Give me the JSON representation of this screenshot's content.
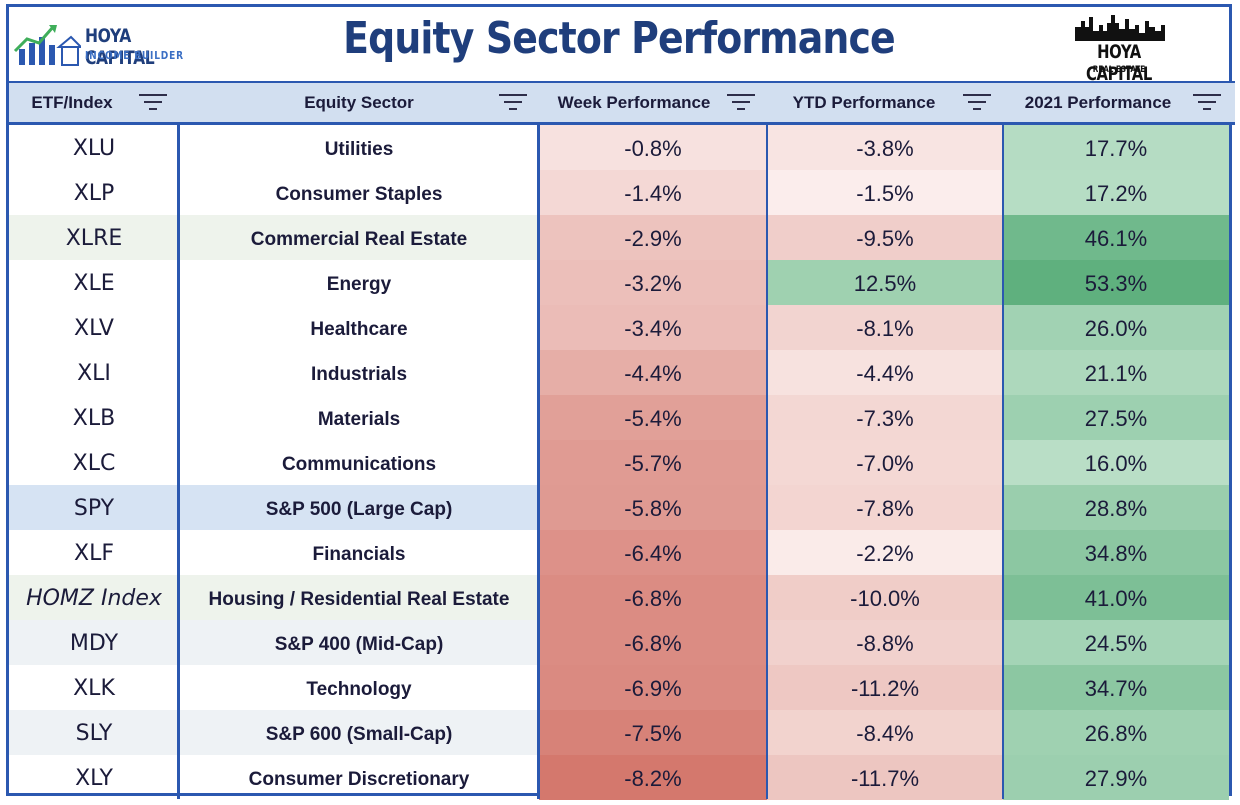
{
  "title": "Equity Sector Performance",
  "logo_left": {
    "brand": "HOYA CAPITAL",
    "sub": "INCOME BUILDER"
  },
  "logo_right": {
    "brand": "HOYA CAPITAL",
    "sub": "REAL ESTATE"
  },
  "headers": {
    "etf": "ETF/Index",
    "sector": "Equity Sector",
    "week": "Week Performance",
    "ytd": "YTD Performance",
    "y2021": "2021 Performance"
  },
  "rows": [
    {
      "etf": "XLU",
      "sector": "Utilities",
      "week": "-0.8%",
      "ytd": "-3.8%",
      "y2021": "17.7%"
    },
    {
      "etf": "XLP",
      "sector": "Consumer Staples",
      "week": "-1.4%",
      "ytd": "-1.5%",
      "y2021": "17.2%"
    },
    {
      "etf": "XLRE",
      "sector": "Commercial Real Estate",
      "week": "-2.9%",
      "ytd": "-9.5%",
      "y2021": "46.1%"
    },
    {
      "etf": "XLE",
      "sector": "Energy",
      "week": "-3.2%",
      "ytd": "12.5%",
      "y2021": "53.3%"
    },
    {
      "etf": "XLV",
      "sector": "Healthcare",
      "week": "-3.4%",
      "ytd": "-8.1%",
      "y2021": "26.0%"
    },
    {
      "etf": "XLI",
      "sector": "Industrials",
      "week": "-4.4%",
      "ytd": "-4.4%",
      "y2021": "21.1%"
    },
    {
      "etf": "XLB",
      "sector": "Materials",
      "week": "-5.4%",
      "ytd": "-7.3%",
      "y2021": "27.5%"
    },
    {
      "etf": "XLC",
      "sector": "Communications",
      "week": "-5.7%",
      "ytd": "-7.0%",
      "y2021": "16.0%"
    },
    {
      "etf": "SPY",
      "sector": "S&P 500 (Large Cap)",
      "week": "-5.8%",
      "ytd": "-7.8%",
      "y2021": "28.8%"
    },
    {
      "etf": "XLF",
      "sector": "Financials",
      "week": "-6.4%",
      "ytd": "-2.2%",
      "y2021": "34.8%"
    },
    {
      "etf": "HOMZ Index",
      "sector": "Housing / Residential Real Estate",
      "week": "-6.8%",
      "ytd": "-10.0%",
      "y2021": "41.0%"
    },
    {
      "etf": "MDY",
      "sector": "S&P 400 (Mid-Cap)",
      "week": "-6.8%",
      "ytd": "-8.8%",
      "y2021": "24.5%"
    },
    {
      "etf": "XLK",
      "sector": "Technology",
      "week": "-6.9%",
      "ytd": "-11.2%",
      "y2021": "34.7%"
    },
    {
      "etf": "SLY",
      "sector": "S&P 600 (Small-Cap)",
      "week": "-7.5%",
      "ytd": "-8.4%",
      "y2021": "26.8%"
    },
    {
      "etf": "XLY",
      "sector": "Consumer Discretionary",
      "week": "-8.2%",
      "ytd": "-11.7%",
      "y2021": "27.9%"
    }
  ],
  "row_highlights": {
    "XLRE": "#eef3ec",
    "SPY": "#d6e3f3",
    "HOMZ Index": "#eef3ec",
    "MDY": "#eef2f5",
    "SLY": "#eef2f5"
  },
  "colors": {
    "frame_border": "#2b58b0",
    "header_bg": "#d2dff0",
    "title_color": "#1f3e7c",
    "negative": "#d4786d",
    "positive": "#5fb07e"
  }
}
